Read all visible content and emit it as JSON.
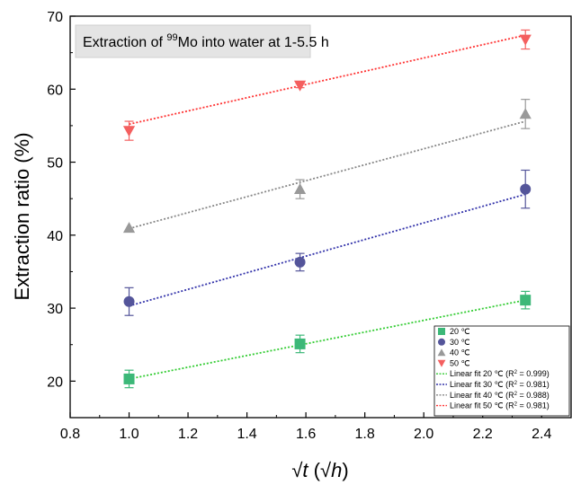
{
  "chart_data": {
    "type": "scatter",
    "title_parts": {
      "prefix": "Extraction of ",
      "sup": "99",
      "suffix": "Mo into water at 1-5.5 h"
    },
    "xlabel": {
      "root": "√",
      "t": "t",
      "open": " (√",
      "h": "h",
      "close": ")"
    },
    "ylabel": "Extraction ratio (%)",
    "xlim": [
      0.8,
      2.5
    ],
    "ylim": [
      15,
      70
    ],
    "xticks": [
      "0.8",
      "1.0",
      "1.2",
      "1.4",
      "1.6",
      "1.8",
      "2.0",
      "2.2",
      "2.4"
    ],
    "xtick_values": [
      0.8,
      1.0,
      1.2,
      1.4,
      1.6,
      1.8,
      2.0,
      2.2,
      2.4
    ],
    "yticks": [
      "20",
      "30",
      "40",
      "50",
      "60",
      "70"
    ],
    "ytick_values": [
      20,
      30,
      40,
      50,
      60,
      70
    ],
    "x": [
      1.0,
      1.58,
      2.345
    ],
    "series": [
      {
        "name": "20 ℃",
        "marker": "square",
        "color": "#3cb878",
        "values": [
          20.3,
          25.1,
          31.1
        ],
        "errors": [
          1.2,
          1.2,
          1.2
        ],
        "fit": {
          "name": "Linear fit 20 ℃ (R² = 0.999)",
          "label_main": "Linear fit 20 ℃ (R",
          "label_sup": "2",
          "label_tail": " = 0.999)",
          "start": 20.3,
          "end": 31.1,
          "color": "#33cc33"
        }
      },
      {
        "name": "30 ℃",
        "marker": "circle",
        "color": "#54559a",
        "values": [
          30.9,
          36.3,
          46.3
        ],
        "errors": [
          1.9,
          1.2,
          2.6
        ],
        "fit": {
          "name": "Linear fit 30 ℃ (R² = 0.981)",
          "label_main": "Linear fit 30 ℃ (R",
          "label_sup": "2",
          "label_tail": " = 0.981)",
          "start": 30.3,
          "end": 45.6,
          "color": "#3333aa"
        }
      },
      {
        "name": "40 ℃",
        "marker": "triangle-up",
        "color": "#999999",
        "values": [
          41.0,
          46.3,
          56.6
        ],
        "errors": [
          0.0,
          1.3,
          2.0
        ],
        "fit": {
          "name": "Linear fit 40 ℃ (R² = 0.988)",
          "label_main": "Linear fit 40 ℃ (R",
          "label_sup": "2",
          "label_tail": " = 0.988)",
          "start": 40.9,
          "end": 55.6,
          "color": "#888888"
        }
      },
      {
        "name": "50 ℃",
        "marker": "triangle-down",
        "color": "#f45f5f",
        "values": [
          54.3,
          60.5,
          66.8
        ],
        "errors": [
          1.3,
          0.3,
          1.3
        ],
        "fit": {
          "name": "Linear fit 50 ℃ (R² = 0.981)",
          "label_main": "Linear fit 50 ℃ (R",
          "label_sup": "2",
          "label_tail": " = 0.981)",
          "start": 55.2,
          "end": 67.4,
          "color": "#ff3333"
        }
      }
    ],
    "legend_position": "bottom-right",
    "grid": false
  }
}
